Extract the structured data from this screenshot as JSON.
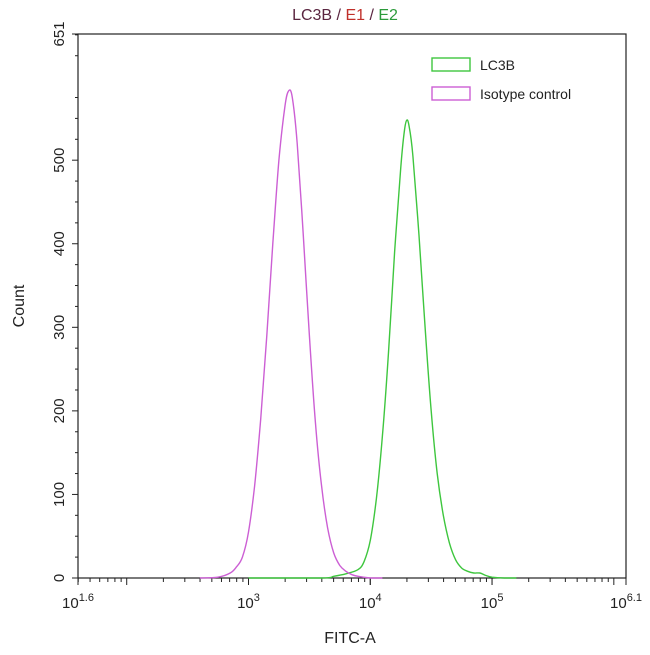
{
  "chart_data": {
    "type": "line",
    "title_parts": [
      {
        "text": "LC3B",
        "color": "#5a2540"
      },
      {
        "text": " / ",
        "color": "#5a2540"
      },
      {
        "text": "E1",
        "color": "#c0302a"
      },
      {
        "text": " / ",
        "color": "#5a2540"
      },
      {
        "text": "E2",
        "color": "#2b9a3a"
      }
    ],
    "xlabel": "FITC-A",
    "ylabel": "Count",
    "x_scale": "log10",
    "xlim_log10": [
      1.6,
      6.1
    ],
    "ylim": [
      0,
      651
    ],
    "x_ticks": [
      {
        "base": "10",
        "exp": "1.6",
        "value_log10": 1.6
      },
      {
        "base": "10",
        "exp": "3",
        "value_log10": 3
      },
      {
        "base": "10",
        "exp": "4",
        "value_log10": 4
      },
      {
        "base": "10",
        "exp": "5",
        "value_log10": 5
      },
      {
        "base": "10",
        "exp": "6.1",
        "value_log10": 6.1
      }
    ],
    "y_ticks": [
      "0",
      "100",
      "200",
      "300",
      "400",
      "500",
      "651"
    ],
    "y_tick_values": [
      0,
      100,
      200,
      300,
      400,
      500,
      651
    ],
    "legend_position": "top-right",
    "series": [
      {
        "name": "LC3B",
        "color": "#3ec63e",
        "x_log10": [
          3.0,
          3.6,
          3.7,
          3.8,
          3.9,
          3.95,
          4.0,
          4.05,
          4.1,
          4.15,
          4.2,
          4.25,
          4.28,
          4.3,
          4.32,
          4.35,
          4.4,
          4.45,
          4.5,
          4.55,
          4.6,
          4.65,
          4.7,
          4.75,
          4.8,
          4.85,
          4.9,
          4.95,
          5.0,
          5.1,
          5.2
        ],
        "y": [
          0,
          0,
          2,
          5,
          10,
          20,
          45,
          95,
          170,
          270,
          390,
          490,
          535,
          548,
          540,
          505,
          410,
          300,
          200,
          125,
          75,
          42,
          22,
          12,
          8,
          6,
          6,
          3,
          1,
          0,
          0
        ]
      },
      {
        "name": "Isotype control",
        "color": "#cc5fd4",
        "x_log10": [
          2.6,
          2.75,
          2.85,
          2.9,
          2.95,
          3.0,
          3.05,
          3.1,
          3.15,
          3.2,
          3.25,
          3.3,
          3.33,
          3.36,
          3.4,
          3.45,
          3.5,
          3.55,
          3.6,
          3.65,
          3.7,
          3.75,
          3.8,
          3.85,
          3.9,
          4.0,
          4.1
        ],
        "y": [
          0,
          1,
          6,
          13,
          25,
          55,
          110,
          190,
          290,
          400,
          500,
          565,
          583,
          575,
          520,
          410,
          290,
          185,
          110,
          60,
          30,
          15,
          8,
          4,
          2,
          0,
          0
        ]
      }
    ]
  }
}
